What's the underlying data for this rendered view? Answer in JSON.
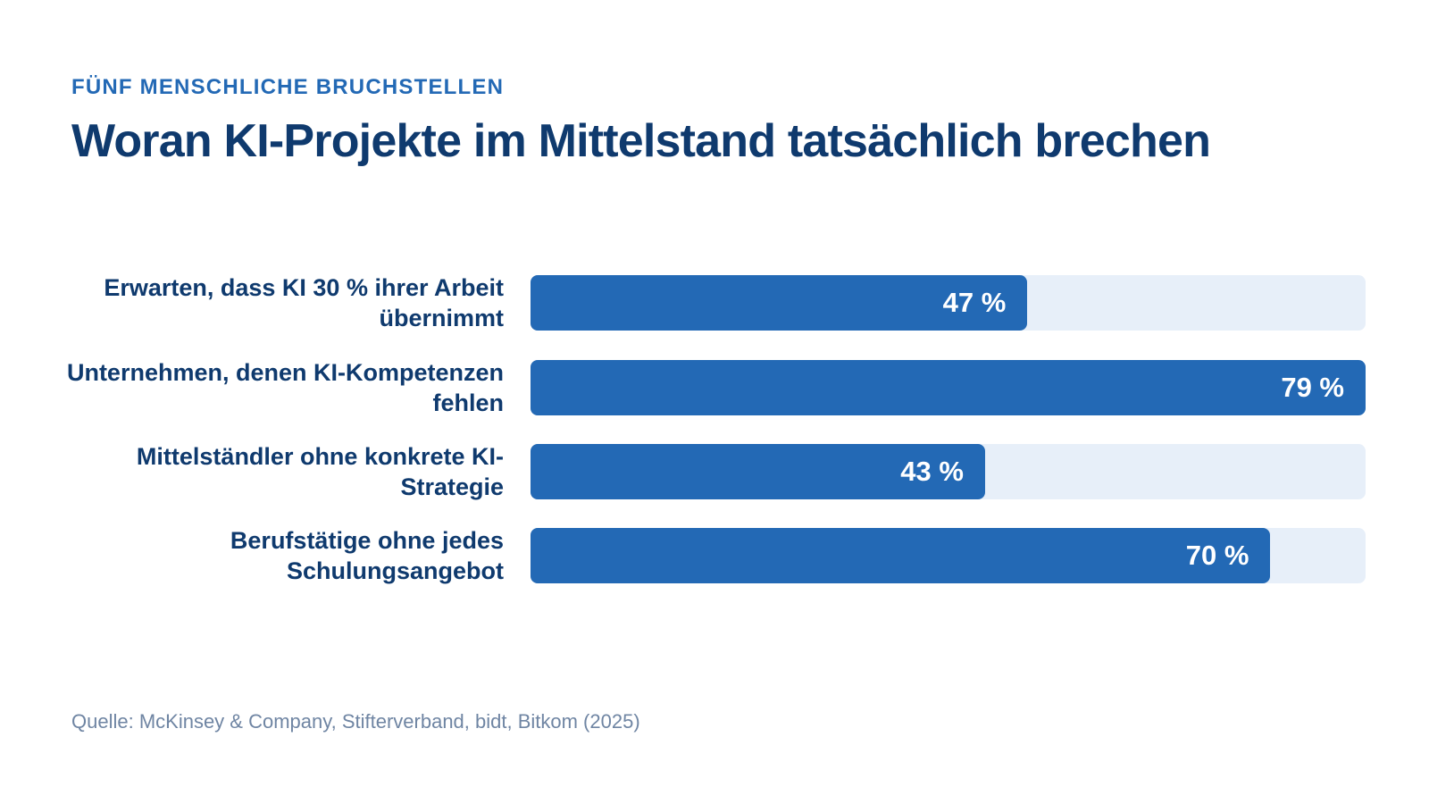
{
  "header": {
    "eyebrow": "FÜNF MENSCHLICHE BRUCHSTELLEN",
    "title": "Woran KI-Projekte im Mittelstand tatsächlich brechen"
  },
  "colors": {
    "bar": "#2369b5",
    "track": "#e7eff9",
    "label": "#0f3a6e",
    "eyebrow": "#2369b5",
    "source": "#6f85a3"
  },
  "chart_data": {
    "type": "bar",
    "orientation": "horizontal",
    "title": "Woran KI-Projekte im Mittelstand tatsächlich brechen",
    "subtitle": "FÜNF MENSCHLICHE BRUCHSTELLEN",
    "categories": [
      "Erwarten, dass KI 30 % ihrer Arbeit übernimmt",
      "Unternehmen, denen KI-Kompetenzen fehlen",
      "Mittelständler ohne konkrete KI-Strategie",
      "Berufstätige ohne jedes Schulungsangebot"
    ],
    "values": [
      47,
      79,
      43,
      70
    ],
    "value_labels": [
      "47 %",
      "79 %",
      "43 %",
      "70 %"
    ],
    "xlim": [
      0,
      79
    ],
    "unit": "%",
    "grid": false,
    "legend": "none"
  },
  "footer": {
    "source": "Quelle: McKinsey & Company, Stifterverband, bidt, Bitkom (2025)"
  }
}
